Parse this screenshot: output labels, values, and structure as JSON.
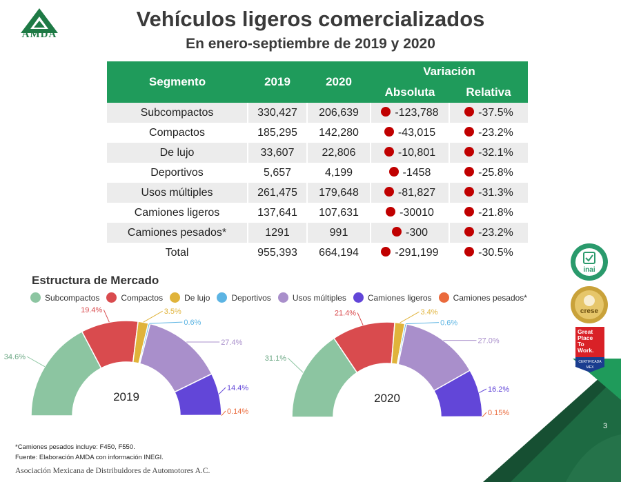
{
  "logo": {
    "text": "AMDA"
  },
  "title": "Vehículos ligeros comercializados",
  "subtitle": "En enero-septiembre de 2019 y 2020",
  "table": {
    "headers": {
      "segment": "Segmento",
      "y2019": "2019",
      "y2020": "2020",
      "variation": "Variación",
      "absolute": "Absoluta",
      "relative": "Relativa"
    },
    "rows": [
      {
        "segment": "Subcompactos",
        "y2019": "330,427",
        "y2020": "206,639",
        "absolute": "-123,788",
        "relative": "-37.5%"
      },
      {
        "segment": "Compactos",
        "y2019": "185,295",
        "y2020": "142,280",
        "absolute": "-43,015",
        "relative": "-23.2%"
      },
      {
        "segment": "De lujo",
        "y2019": "33,607",
        "y2020": "22,806",
        "absolute": "-10,801",
        "relative": "-32.1%"
      },
      {
        "segment": "Deportivos",
        "y2019": "5,657",
        "y2020": "4,199",
        "absolute": "-1458",
        "relative": "-25.8%"
      },
      {
        "segment": "Usos múltiples",
        "y2019": "261,475",
        "y2020": "179,648",
        "absolute": "-81,827",
        "relative": "-31.3%"
      },
      {
        "segment": "Camiones ligeros",
        "y2019": "137,641",
        "y2020": "107,631",
        "absolute": "-30010",
        "relative": "-21.8%"
      },
      {
        "segment": "Camiones pesados*",
        "y2019": "1291",
        "y2020": "991",
        "absolute": "-300",
        "relative": "-23.2%"
      },
      {
        "segment": "Total",
        "y2019": "955,393",
        "y2020": "664,194",
        "absolute": "-291,199",
        "relative": "-30.5%"
      }
    ],
    "dot_color": "#c00000"
  },
  "section_title": "Estructura de Mercado",
  "chart_data": {
    "type": "pie",
    "variant": "semicircle-donut",
    "categories": [
      "Subcompactos",
      "Compactos",
      "De lujo",
      "Deportivos",
      "Usos múltiples",
      "Camiones ligeros",
      "Camiones pesados*"
    ],
    "colors": [
      "#8cc5a1",
      "#d94b4e",
      "#e0b33a",
      "#5cb4e3",
      "#a98fcb",
      "#6246d8",
      "#ea6a3c"
    ],
    "series": [
      {
        "name": "2019",
        "values": [
          34.6,
          19.4,
          3.5,
          0.6,
          27.4,
          14.4,
          0.14
        ],
        "labels": [
          "34.6%",
          "19.4%",
          "3.5%",
          "0.6%",
          "27.4%",
          "14.4%",
          "0.14%"
        ]
      },
      {
        "name": "2020",
        "values": [
          31.1,
          21.4,
          3.4,
          0.6,
          27.0,
          16.2,
          0.15
        ],
        "labels": [
          "31.1%",
          "21.4%",
          "3.4%",
          "0.6%",
          "27.0%",
          "16.2%",
          "0.15%"
        ]
      }
    ],
    "legend_position": "top"
  },
  "footnotes": {
    "note1": "*Camiones pesados incluye: F450, F550.",
    "note2": "Fuente: Elaboración AMDA con información INEGI."
  },
  "association": "Asociación Mexicana de Distribuidores de Automotores A.C.",
  "page_number": "3",
  "badges": {
    "inai": "inai",
    "crese": "crese",
    "gptw": [
      "Great",
      "Place",
      "To",
      "Work."
    ],
    "gptw_cert": "CERTIFICADA",
    "gptw_mex": "MEX"
  }
}
